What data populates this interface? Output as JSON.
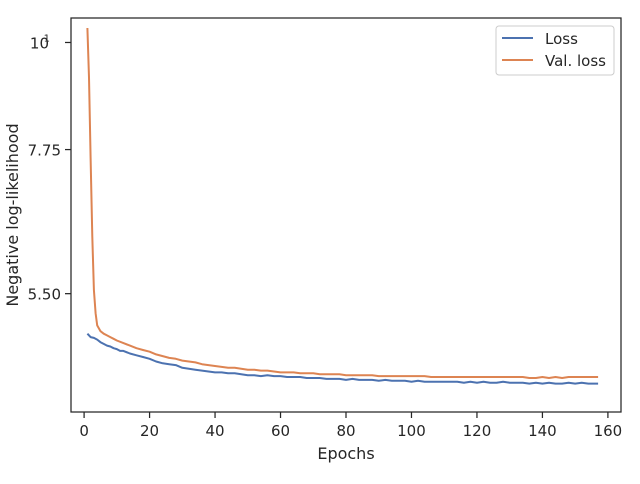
{
  "chart_data": {
    "type": "line",
    "xlabel": "Epochs",
    "ylabel": "Negative log-likelihood",
    "xlim": [
      -4,
      164
    ],
    "ylim": [
      4.15,
      10.6
    ],
    "y_scale": "log",
    "grid": false,
    "legend_position": "top-right",
    "x_ticks": [
      {
        "value": 0,
        "label": "0"
      },
      {
        "value": 20,
        "label": "20"
      },
      {
        "value": 40,
        "label": "40"
      },
      {
        "value": 60,
        "label": "60"
      },
      {
        "value": 80,
        "label": "80"
      },
      {
        "value": 100,
        "label": "100"
      },
      {
        "value": 120,
        "label": "120"
      },
      {
        "value": 140,
        "label": "140"
      },
      {
        "value": 160,
        "label": "160"
      }
    ],
    "y_ticks": [
      {
        "value": 5.5,
        "label": "5.50"
      },
      {
        "value": 7.75,
        "label": "7.75"
      },
      {
        "value": 10,
        "label": "10",
        "sup": "1"
      }
    ],
    "series": [
      {
        "name": "Loss",
        "color": "#4c72b0",
        "x": [
          1,
          2,
          3,
          4,
          5,
          6,
          7,
          8,
          9,
          10,
          11,
          12,
          14,
          16,
          18,
          20,
          22,
          24,
          26,
          28,
          30,
          32,
          34,
          36,
          38,
          40,
          42,
          44,
          46,
          48,
          50,
          52,
          54,
          56,
          58,
          60,
          62,
          64,
          66,
          68,
          70,
          72,
          74,
          76,
          78,
          80,
          82,
          84,
          86,
          88,
          90,
          92,
          94,
          96,
          98,
          100,
          102,
          104,
          106,
          108,
          110,
          112,
          114,
          116,
          118,
          120,
          122,
          124,
          126,
          128,
          130,
          132,
          134,
          136,
          138,
          140,
          142,
          144,
          146,
          148,
          150,
          152,
          154,
          156,
          157
        ],
        "values": [
          5.0,
          4.96,
          4.95,
          4.93,
          4.9,
          4.88,
          4.86,
          4.85,
          4.83,
          4.82,
          4.8,
          4.8,
          4.77,
          4.75,
          4.73,
          4.71,
          4.68,
          4.66,
          4.65,
          4.64,
          4.61,
          4.6,
          4.59,
          4.58,
          4.57,
          4.56,
          4.56,
          4.55,
          4.55,
          4.54,
          4.53,
          4.53,
          4.52,
          4.53,
          4.52,
          4.52,
          4.51,
          4.51,
          4.51,
          4.5,
          4.5,
          4.5,
          4.49,
          4.49,
          4.49,
          4.48,
          4.49,
          4.48,
          4.48,
          4.48,
          4.47,
          4.48,
          4.47,
          4.47,
          4.47,
          4.46,
          4.47,
          4.46,
          4.46,
          4.46,
          4.46,
          4.46,
          4.46,
          4.45,
          4.46,
          4.45,
          4.46,
          4.45,
          4.45,
          4.46,
          4.45,
          4.45,
          4.45,
          4.44,
          4.45,
          4.44,
          4.45,
          4.44,
          4.44,
          4.45,
          4.44,
          4.45,
          4.44,
          4.44,
          4.44
        ]
      },
      {
        "name": "Val. loss",
        "color": "#dd8452",
        "x": [
          1,
          1.5,
          2,
          2.5,
          3,
          3.5,
          4,
          5,
          6,
          7,
          8,
          9,
          10,
          12,
          14,
          16,
          18,
          20,
          22,
          24,
          26,
          28,
          30,
          32,
          34,
          36,
          38,
          40,
          42,
          44,
          46,
          48,
          50,
          52,
          54,
          56,
          58,
          60,
          62,
          64,
          66,
          68,
          70,
          72,
          74,
          76,
          78,
          80,
          82,
          84,
          86,
          88,
          90,
          92,
          94,
          96,
          98,
          100,
          102,
          104,
          106,
          108,
          110,
          112,
          114,
          116,
          118,
          120,
          122,
          124,
          126,
          128,
          130,
          132,
          134,
          136,
          138,
          140,
          142,
          144,
          146,
          148,
          150,
          152,
          154,
          156,
          157
        ],
        "values": [
          10.35,
          9.2,
          7.6,
          6.3,
          5.55,
          5.25,
          5.1,
          5.03,
          5.0,
          4.98,
          4.96,
          4.94,
          4.92,
          4.89,
          4.86,
          4.83,
          4.81,
          4.79,
          4.76,
          4.74,
          4.72,
          4.71,
          4.69,
          4.68,
          4.67,
          4.65,
          4.64,
          4.63,
          4.62,
          4.61,
          4.61,
          4.6,
          4.59,
          4.59,
          4.58,
          4.58,
          4.57,
          4.56,
          4.56,
          4.56,
          4.55,
          4.55,
          4.55,
          4.54,
          4.54,
          4.54,
          4.54,
          4.53,
          4.53,
          4.53,
          4.53,
          4.53,
          4.52,
          4.52,
          4.52,
          4.52,
          4.52,
          4.52,
          4.52,
          4.52,
          4.51,
          4.51,
          4.51,
          4.51,
          4.51,
          4.51,
          4.51,
          4.51,
          4.51,
          4.51,
          4.51,
          4.51,
          4.51,
          4.51,
          4.51,
          4.5,
          4.5,
          4.51,
          4.5,
          4.51,
          4.5,
          4.51,
          4.51,
          4.51,
          4.51,
          4.51,
          4.51
        ]
      }
    ]
  }
}
